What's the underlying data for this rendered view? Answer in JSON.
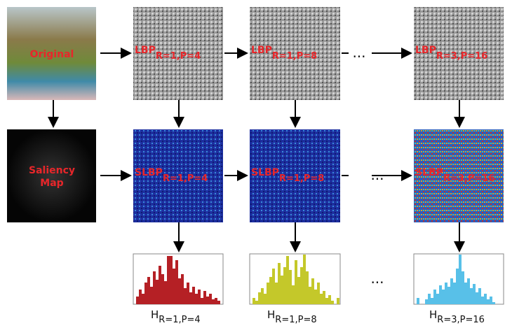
{
  "original": {
    "label": "Original"
  },
  "saliency": {
    "label_lines": [
      "Saliency",
      "Map"
    ]
  },
  "lbp": [
    {
      "label": "LBP",
      "sub": "R=1,P=4"
    },
    {
      "label": "LBP",
      "sub": "R=1,P=8"
    },
    {
      "label": "LBP",
      "sub": "R=3,P=16"
    }
  ],
  "slbp": [
    {
      "label": "SLBP",
      "sub": "R=1,P=4"
    },
    {
      "label": "SLBP",
      "sub": "R=1,P=8"
    },
    {
      "label": "SLBP",
      "sub": "R=3,P=16"
    }
  ],
  "histograms": [
    {
      "label": "H",
      "sub": "R=1,P=4"
    },
    {
      "label": "H",
      "sub": "R=1,P=8"
    },
    {
      "label": "H",
      "sub": "R=3,P=16"
    }
  ],
  "ellipsis": [
    "...",
    "...",
    "..."
  ]
}
